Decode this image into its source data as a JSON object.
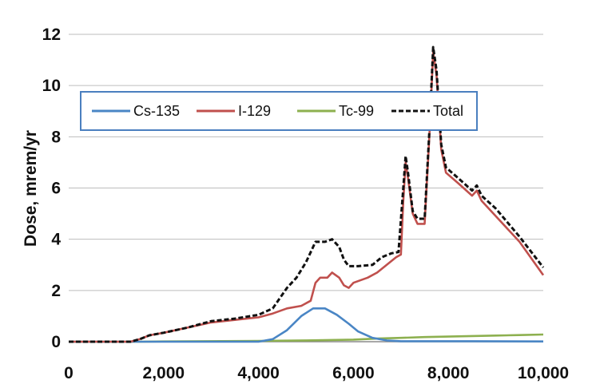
{
  "chart_data": {
    "type": "line",
    "title": "",
    "xlabel": "",
    "ylabel": "Dose, mrem/yr",
    "xlim": [
      0,
      10000
    ],
    "ylim": [
      0,
      12
    ],
    "x_ticks": [
      0,
      2000,
      4000,
      6000,
      8000,
      10000
    ],
    "x_tick_labels": [
      "0",
      "2,000",
      "4,000",
      "6,000",
      "8,000",
      "10,000"
    ],
    "y_ticks": [
      0,
      2,
      4,
      6,
      8,
      10,
      12
    ],
    "y_tick_labels": [
      "0",
      "2",
      "4",
      "6",
      "8",
      "10",
      "12"
    ],
    "grid": "horizontal",
    "legend_position": "top-left",
    "series": [
      {
        "name": "Cs-135",
        "color": "#4a86c5",
        "style": "solid",
        "points": [
          [
            0,
            0
          ],
          [
            4000,
            0
          ],
          [
            4300,
            0.1
          ],
          [
            4600,
            0.45
          ],
          [
            4900,
            1.0
          ],
          [
            5150,
            1.3
          ],
          [
            5400,
            1.3
          ],
          [
            5650,
            1.05
          ],
          [
            5900,
            0.7
          ],
          [
            6100,
            0.4
          ],
          [
            6400,
            0.15
          ],
          [
            6700,
            0.05
          ],
          [
            7000,
            0.02
          ],
          [
            8500,
            0.02
          ],
          [
            10000,
            0.01
          ]
        ]
      },
      {
        "name": "I-129",
        "color": "#c0504d",
        "style": "solid",
        "points": [
          [
            0,
            0
          ],
          [
            1300,
            0
          ],
          [
            1500,
            0.1
          ],
          [
            1700,
            0.25
          ],
          [
            2000,
            0.35
          ],
          [
            2500,
            0.55
          ],
          [
            3000,
            0.75
          ],
          [
            3500,
            0.85
          ],
          [
            4000,
            0.95
          ],
          [
            4300,
            1.1
          ],
          [
            4600,
            1.3
          ],
          [
            4900,
            1.4
          ],
          [
            5100,
            1.6
          ],
          [
            5200,
            2.3
          ],
          [
            5300,
            2.5
          ],
          [
            5450,
            2.5
          ],
          [
            5550,
            2.7
          ],
          [
            5700,
            2.5
          ],
          [
            5800,
            2.2
          ],
          [
            5900,
            2.1
          ],
          [
            6000,
            2.3
          ],
          [
            6300,
            2.5
          ],
          [
            6500,
            2.7
          ],
          [
            6700,
            3.0
          ],
          [
            6900,
            3.3
          ],
          [
            7000,
            3.4
          ],
          [
            7050,
            5.5
          ],
          [
            7100,
            7.0
          ],
          [
            7150,
            6.4
          ],
          [
            7250,
            5.0
          ],
          [
            7350,
            4.6
          ],
          [
            7500,
            4.6
          ],
          [
            7600,
            8.0
          ],
          [
            7680,
            11.3
          ],
          [
            7750,
            10.4
          ],
          [
            7850,
            7.5
          ],
          [
            7950,
            6.6
          ],
          [
            8200,
            6.2
          ],
          [
            8500,
            5.7
          ],
          [
            8600,
            5.9
          ],
          [
            8700,
            5.5
          ],
          [
            9000,
            4.9
          ],
          [
            9500,
            3.9
          ],
          [
            10000,
            2.6
          ]
        ]
      },
      {
        "name": "Tc-99",
        "color": "#8db04f",
        "style": "solid",
        "points": [
          [
            0,
            0
          ],
          [
            1500,
            0
          ],
          [
            2000,
            0.01
          ],
          [
            4000,
            0.03
          ],
          [
            5000,
            0.05
          ],
          [
            6000,
            0.08
          ],
          [
            6500,
            0.12
          ],
          [
            7000,
            0.15
          ],
          [
            7500,
            0.18
          ],
          [
            8000,
            0.2
          ],
          [
            8500,
            0.22
          ],
          [
            9000,
            0.24
          ],
          [
            9500,
            0.26
          ],
          [
            10000,
            0.28
          ]
        ]
      },
      {
        "name": "Total",
        "color": "#111111",
        "style": "dashed",
        "points": [
          [
            0,
            0
          ],
          [
            1300,
            0
          ],
          [
            1500,
            0.1
          ],
          [
            1700,
            0.25
          ],
          [
            2000,
            0.35
          ],
          [
            2500,
            0.55
          ],
          [
            3000,
            0.8
          ],
          [
            3500,
            0.9
          ],
          [
            4000,
            1.05
          ],
          [
            4300,
            1.3
          ],
          [
            4600,
            2.1
          ],
          [
            4800,
            2.5
          ],
          [
            5000,
            3.1
          ],
          [
            5200,
            3.9
          ],
          [
            5400,
            3.9
          ],
          [
            5550,
            4.0
          ],
          [
            5700,
            3.7
          ],
          [
            5800,
            3.2
          ],
          [
            5900,
            2.95
          ],
          [
            6100,
            2.95
          ],
          [
            6400,
            3.0
          ],
          [
            6600,
            3.3
          ],
          [
            6800,
            3.45
          ],
          [
            6950,
            3.5
          ],
          [
            7050,
            6.0
          ],
          [
            7100,
            7.25
          ],
          [
            7150,
            6.6
          ],
          [
            7250,
            5.1
          ],
          [
            7350,
            4.8
          ],
          [
            7500,
            4.8
          ],
          [
            7600,
            8.2
          ],
          [
            7680,
            11.5
          ],
          [
            7750,
            10.6
          ],
          [
            7850,
            7.7
          ],
          [
            7950,
            6.8
          ],
          [
            8200,
            6.4
          ],
          [
            8500,
            5.9
          ],
          [
            8600,
            6.1
          ],
          [
            8700,
            5.7
          ],
          [
            9000,
            5.2
          ],
          [
            9500,
            4.1
          ],
          [
            10000,
            2.9
          ]
        ]
      }
    ]
  }
}
